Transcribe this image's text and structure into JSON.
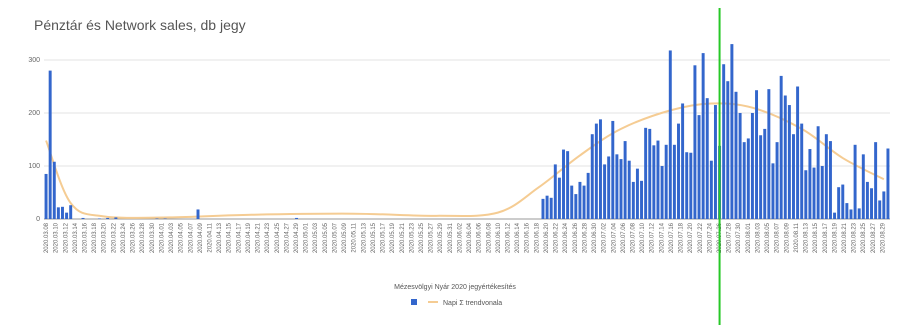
{
  "chart_data": {
    "type": "bar",
    "title": "Pénztár és Network sales, db jegy",
    "legend_title": "Mézesvölgyi Nyár 2020 jegyértékesítés",
    "trend_label": "Napi Σ trendvonala",
    "ylim": [
      0,
      300
    ],
    "y_ticks": [
      0,
      100,
      200,
      300
    ],
    "x_start": "2020-03-08",
    "x_end": "2020-08-29",
    "x_tick_labels": [
      "2020.03.08",
      "2020.03.10",
      "2020.03.12",
      "2020.03.14",
      "2020.03.16",
      "2020.03.18",
      "2020.03.20",
      "2020.03.22",
      "2020.03.24",
      "2020.03.26",
      "2020.03.28",
      "2020.03.30",
      "2020.04.01",
      "2020.04.03",
      "2020.04.05",
      "2020.04.07",
      "2020.04.09",
      "2020.04.11",
      "2020.04.13",
      "2020.04.15",
      "2020.04.17",
      "2020.04.19",
      "2020.04.21",
      "2020.04.23",
      "2020.04.25",
      "2020.04.27",
      "2020.04.29",
      "2020.05.01",
      "2020.05.03",
      "2020.05.05",
      "2020.05.07",
      "2020.05.09",
      "2020.05.11",
      "2020.05.13",
      "2020.05.15",
      "2020.05.17",
      "2020.05.19",
      "2020.05.21",
      "2020.05.23",
      "2020.05.25",
      "2020.05.27",
      "2020.05.29",
      "2020.05.31",
      "2020.06.02",
      "2020.06.04",
      "2020.06.06",
      "2020.06.08",
      "2020.06.10",
      "2020.06.12",
      "2020.06.14",
      "2020.06.16",
      "2020.06.18",
      "2020.06.20",
      "2020.06.22",
      "2020.06.24",
      "2020.06.26",
      "2020.06.28",
      "2020.06.30",
      "2020.07.02",
      "2020.07.04",
      "2020.07.06",
      "2020.07.08",
      "2020.07.10",
      "2020.07.12",
      "2020.07.14",
      "2020.07.16",
      "2020.07.18",
      "2020.07.20",
      "2020.07.22",
      "2020.07.24",
      "2020.07.26",
      "2020.07.28",
      "2020.07.30",
      "2020.08.01",
      "2020.08.03",
      "2020.08.05",
      "2020.08.07",
      "2020.08.09",
      "2020.08.11",
      "2020.08.13",
      "2020.08.15",
      "2020.08.17",
      "2020.08.19",
      "2020.08.21",
      "2020.08.23",
      "2020.08.25",
      "2020.08.27",
      "2020.08.29"
    ],
    "series": [
      {
        "color": "#3366cc",
        "values": [
          85,
          280,
          108,
          22,
          23,
          12,
          26,
          0,
          0,
          2,
          0,
          0,
          0,
          1,
          0,
          2,
          0,
          3,
          0,
          0,
          0,
          0,
          0,
          0,
          0,
          0,
          0,
          1,
          0,
          1,
          0,
          0,
          0,
          0,
          0,
          0,
          0,
          18,
          0,
          0,
          0,
          0,
          0,
          0,
          0,
          0,
          0,
          0,
          0,
          0,
          0,
          0,
          0,
          0,
          0,
          0,
          0,
          0,
          0,
          0,
          0,
          2,
          0,
          0,
          0,
          0,
          0,
          0,
          0,
          0,
          0,
          0,
          0,
          0,
          0,
          0,
          0,
          0,
          0,
          0,
          0,
          0,
          0,
          0,
          0,
          0,
          0,
          0,
          0,
          0,
          0,
          0,
          0,
          0,
          0,
          0,
          0,
          0,
          0,
          0,
          0,
          0,
          0,
          0,
          0,
          0,
          0,
          0,
          0,
          0,
          0,
          0,
          0,
          0,
          0,
          0,
          0,
          0,
          0,
          0,
          0,
          38,
          44,
          40,
          103,
          78,
          131,
          128,
          63,
          47,
          70,
          63,
          87,
          160,
          180,
          188,
          103,
          118,
          185,
          122,
          113,
          147,
          110,
          70,
          95,
          72,
          172,
          170,
          139,
          148,
          100,
          140,
          318,
          140,
          180,
          218,
          126,
          125,
          290,
          196,
          313,
          228,
          110,
          215,
          138,
          292,
          260,
          330,
          240,
          200,
          145,
          152,
          200,
          243,
          158,
          170,
          245,
          105,
          145,
          270,
          233,
          215,
          160,
          250,
          180,
          92,
          132,
          97,
          175,
          100,
          160,
          147,
          12,
          60,
          65,
          30,
          18,
          140,
          20,
          122,
          70,
          58,
          145,
          35,
          52,
          133
        ],
        "trend_label_ref": "trend_label"
      }
    ],
    "trend": {
      "color": "#f5cc93",
      "points": [
        [
          0,
          148
        ],
        [
          6,
          30
        ],
        [
          14,
          5
        ],
        [
          30,
          3
        ],
        [
          50,
          8
        ],
        [
          75,
          10
        ],
        [
          95,
          6
        ],
        [
          110,
          12
        ],
        [
          120,
          60
        ],
        [
          130,
          120
        ],
        [
          140,
          170
        ],
        [
          152,
          205
        ],
        [
          162,
          218
        ],
        [
          172,
          210
        ],
        [
          184,
          170
        ],
        [
          194,
          115
        ],
        [
          204,
          75
        ]
      ]
    },
    "markers": {
      "green_line_index": 164,
      "green_line_color": "#27c827",
      "black_line_index": 212,
      "black_line_color": "#333333"
    }
  }
}
